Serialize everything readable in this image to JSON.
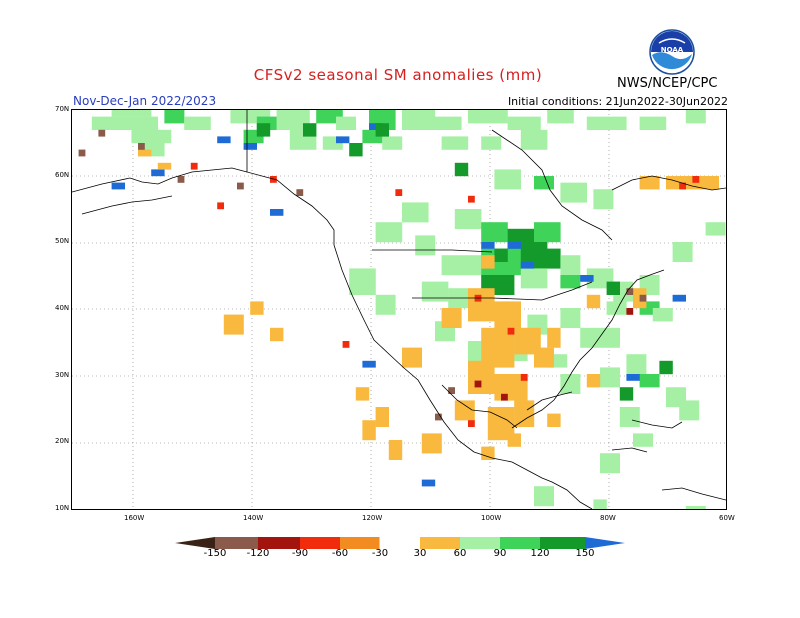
{
  "header": {
    "title": "CFSv2 seasonal SM anomalies (mm)",
    "season": "Nov-Dec-Jan 2022/2023",
    "initial_conditions": "Initial conditions: 21Jun2022-30Jun2022",
    "org": "NWS/NCEP/CPC",
    "logo_text": "NOAA"
  },
  "map": {
    "lat_labels": [
      "70N",
      "60N",
      "50N",
      "40N",
      "30N",
      "20N",
      "10N"
    ],
    "lon_labels": [
      "160W",
      "140W",
      "120W",
      "100W",
      "80W",
      "60W"
    ]
  },
  "legend": {
    "labels": [
      "-150",
      "-120",
      "-90",
      "-60",
      "-30",
      "30",
      "60",
      "90",
      "120",
      "150"
    ],
    "colors": {
      "lt_neg150": "#3b2216",
      "neg150_neg120": "#8a5a4a",
      "neg120_neg90": "#a3140f",
      "neg90_neg60": "#f02c0d",
      "neg60_neg30": "#f28b20",
      "neg30_30": "#ffffff",
      "p30_60": "#f9b93f",
      "p60_90": "#a6f0a6",
      "p90_120": "#3fd35a",
      "p120_150": "#149a2a",
      "gt_150": "#1f6bd6"
    }
  }
}
